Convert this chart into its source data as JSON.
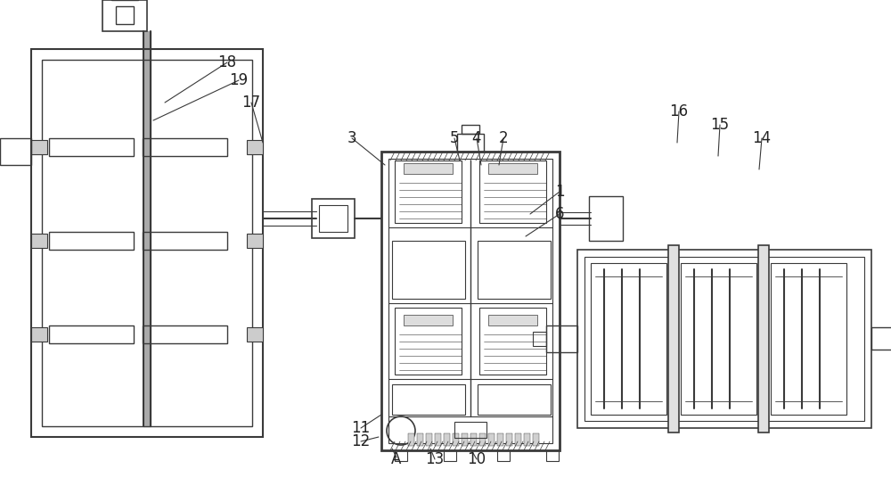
{
  "bg_color": "#ffffff",
  "lc": "#3a3a3a",
  "lw": 1.2,
  "tlw": 2.0,
  "fig_w": 10.0,
  "fig_h": 5.45,
  "dpi": 100
}
